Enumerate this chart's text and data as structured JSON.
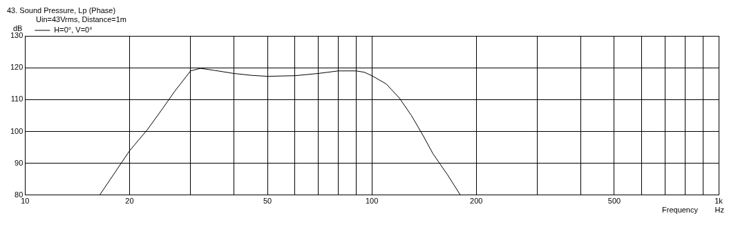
{
  "chart_data": {
    "type": "line",
    "title": "43. Sound Pressure, Lp (Phase)",
    "subtitle": "Uin=43Vrms, Distance=1m",
    "ylabel": "dB",
    "xlabel": "Frequency",
    "annotations": [
      "Hz"
    ],
    "x": [
      16.4,
      18,
      20,
      22.5,
      25,
      27,
      30,
      32,
      35,
      40,
      45,
      50,
      60,
      70,
      80,
      90,
      95,
      100,
      110,
      120,
      130,
      140,
      150,
      165,
      180
    ],
    "series": [
      {
        "name": "H=0°, V=0°",
        "color": "#000000",
        "values": [
          80,
          86.5,
          93.9,
          100.5,
          107.4,
          112.6,
          119,
          119.8,
          119.2,
          118.2,
          117.6,
          117.3,
          117.5,
          118.2,
          119,
          119,
          118.6,
          117.5,
          114.9,
          110.5,
          105,
          99,
          93,
          86.5,
          80
        ]
      }
    ],
    "log": "x",
    "xlim": [
      10,
      1000
    ],
    "xticks": [
      10,
      20,
      {
        "value": 30,
        "label": null
      },
      {
        "value": 40,
        "label": null
      },
      50,
      {
        "value": 60,
        "label": null
      },
      {
        "value": 70,
        "label": null
      },
      {
        "value": 80,
        "label": null
      },
      {
        "value": 90,
        "label": null
      },
      100,
      200,
      {
        "value": 300,
        "label": null
      },
      {
        "value": 400,
        "label": null
      },
      500,
      {
        "value": 600,
        "label": null
      },
      {
        "value": 700,
        "label": null
      },
      {
        "value": 800,
        "label": null
      },
      {
        "value": 900,
        "label": null
      },
      {
        "value": 1000,
        "label": "1k"
      }
    ],
    "ylim": [
      80,
      130
    ],
    "yticks": [
      80,
      90,
      100,
      110,
      120,
      130
    ],
    "grid": true,
    "legend": "top left",
    "marker": "none",
    "line_style": "solid"
  }
}
